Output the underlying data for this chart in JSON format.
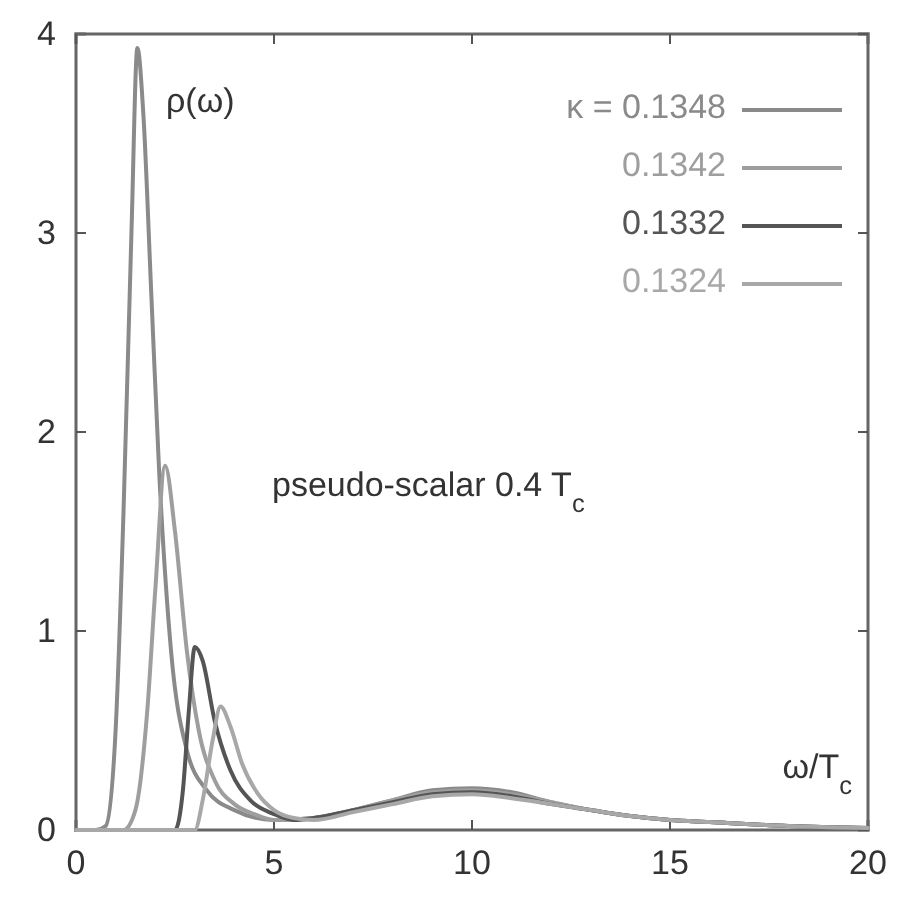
{
  "chart_data": {
    "type": "line",
    "xlabel": "ω/T$_{c}$",
    "ylabel": "ρ(ω)",
    "annotations": [
      "pseudo-scalar 0.4 T$_{c}$"
    ],
    "xlim": [
      0,
      20
    ],
    "ylim": [
      0,
      4
    ],
    "xticks": [
      0,
      5,
      10,
      15,
      20
    ],
    "yticks": [
      0,
      1,
      2,
      3,
      4
    ],
    "grid": false,
    "legend": "top right",
    "line_style": "solid",
    "marker": "none",
    "series": [
      {
        "name": "κ = 0.1348",
        "color": "#8a8a8a",
        "x": [
          0,
          0.5,
          0.75,
          1.0,
          1.2,
          1.4,
          1.55,
          1.7,
          1.9,
          2.1,
          2.4,
          2.8,
          3.3,
          4,
          5,
          6,
          7,
          8,
          9,
          10,
          11,
          12,
          13,
          14,
          15,
          16,
          18,
          20
        ],
        "values": [
          0,
          0,
          0.02,
          0.5,
          1.6,
          3.0,
          3.93,
          3.6,
          2.7,
          1.8,
          0.9,
          0.4,
          0.2,
          0.1,
          0.05,
          0.06,
          0.1,
          0.15,
          0.2,
          0.21,
          0.19,
          0.14,
          0.1,
          0.07,
          0.05,
          0.04,
          0.02,
          0.01
        ]
      },
      {
        "name": "0.1342",
        "color": "#9e9e9e",
        "x": [
          0,
          1.2,
          1.5,
          1.8,
          2.0,
          2.25,
          2.5,
          2.8,
          3.1,
          3.5,
          4,
          4.5,
          5,
          6,
          7,
          8,
          9,
          10,
          11,
          12,
          13,
          14,
          15,
          16,
          18,
          20
        ],
        "values": [
          0,
          0,
          0.1,
          0.6,
          1.2,
          1.83,
          1.5,
          0.9,
          0.5,
          0.25,
          0.13,
          0.08,
          0.05,
          0.06,
          0.1,
          0.15,
          0.19,
          0.2,
          0.18,
          0.14,
          0.1,
          0.07,
          0.05,
          0.04,
          0.02,
          0.01
        ]
      },
      {
        "name": "0.1332",
        "color": "#555555",
        "x": [
          0,
          2.5,
          2.7,
          2.85,
          3.0,
          3.2,
          3.5,
          3.9,
          4.4,
          5,
          5.5,
          6,
          7,
          8,
          9,
          10,
          11,
          12,
          13,
          14,
          15,
          16,
          18,
          20
        ],
        "values": [
          0,
          0,
          0.2,
          0.6,
          0.92,
          0.85,
          0.55,
          0.3,
          0.15,
          0.08,
          0.05,
          0.06,
          0.1,
          0.14,
          0.18,
          0.19,
          0.17,
          0.13,
          0.1,
          0.07,
          0.05,
          0.04,
          0.02,
          0.01
        ]
      },
      {
        "name": "0.1324",
        "color": "#a8a8a8",
        "x": [
          0,
          3.0,
          3.2,
          3.45,
          3.65,
          3.9,
          4.2,
          4.6,
          5,
          5.5,
          6,
          7,
          8,
          9,
          10,
          11,
          12,
          13,
          14,
          15,
          16,
          18,
          20
        ],
        "values": [
          0,
          0,
          0.15,
          0.45,
          0.62,
          0.52,
          0.33,
          0.18,
          0.1,
          0.06,
          0.05,
          0.09,
          0.13,
          0.17,
          0.18,
          0.16,
          0.13,
          0.1,
          0.07,
          0.05,
          0.04,
          0.02,
          0.01
        ]
      }
    ]
  }
}
